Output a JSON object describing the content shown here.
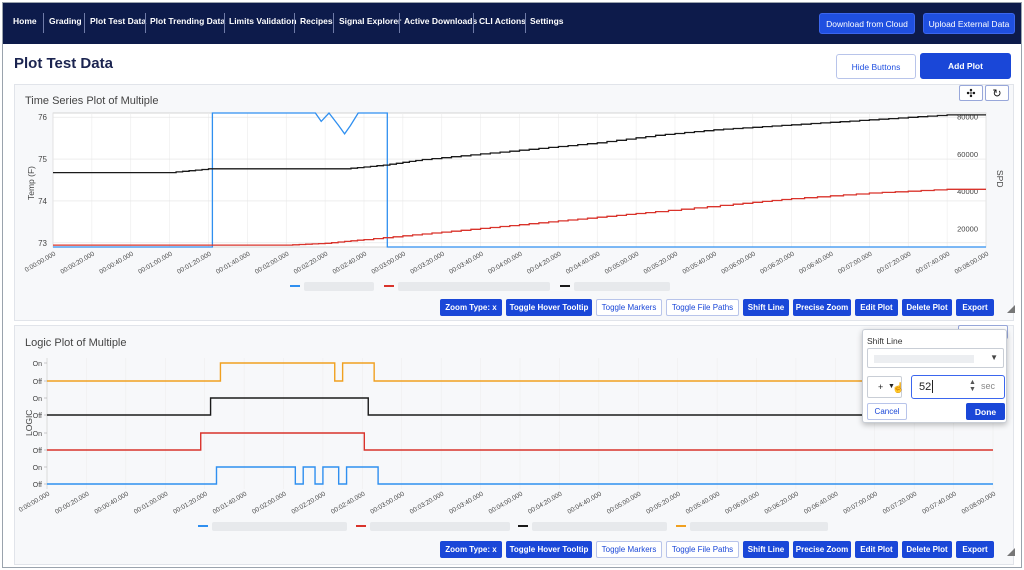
{
  "nav": {
    "items": [
      {
        "label": "Home"
      },
      {
        "label": "Grading"
      },
      {
        "label": "Plot Test Data"
      },
      {
        "label": "Plot Trending Data"
      },
      {
        "label": "Limits Validation"
      },
      {
        "label": "Recipes"
      },
      {
        "label": "Signal Explorer"
      },
      {
        "label": "Active Downloads"
      },
      {
        "label": "CLI Actions"
      },
      {
        "label": "Settings"
      }
    ],
    "download_label": "Download from Cloud",
    "upload_label": "Upload External Data"
  },
  "page": {
    "title": "Plot Test Data",
    "hide_buttons_label": "Hide Buttons",
    "add_plot_label": "Add Plot"
  },
  "toolbar": {
    "zoom_type": "Zoom Type: x",
    "toggle_hover": "Toggle Hover Tooltip",
    "toggle_markers": "Toggle Markers",
    "toggle_file_paths": "Toggle File Paths",
    "shift_line": "Shift Line",
    "precise_zoom": "Precise Zoom",
    "edit_plot": "Edit Plot",
    "delete_plot": "Delete Plot",
    "export": "Export"
  },
  "plot1": {
    "title": "Time Series Plot of Multiple",
    "y_left_label": "Temp (F)",
    "y_right_label": "SPD",
    "y_left_ticks": [
      "76",
      "75",
      "74",
      "73"
    ],
    "y_right_ticks": [
      "80000",
      "60000",
      "40000",
      "20000"
    ],
    "move_icon": "move-icon",
    "reset_icon": "reset-icon"
  },
  "plot2": {
    "title": "Logic Plot of Multiple",
    "y_label": "LOGIC",
    "state_on": "On",
    "state_off": "Off"
  },
  "x_ticks": [
    "0:00:00.000",
    "00:00:20.000",
    "00:00:40.000",
    "00:01:00.000",
    "00:01:20.000",
    "00:01:40.000",
    "00:02:00.000",
    "00:02:20.000",
    "00:02:40.000",
    "00:03:00.000",
    "00:03:20.000",
    "00:03:40.000",
    "00:04:00.000",
    "00:04:20.000",
    "00:04:40.000",
    "00:05:00.000",
    "00:05:20.000",
    "00:05:40.000",
    "00:06:00.000",
    "00:06:20.000",
    "00:06:40.000",
    "00:07:00.000",
    "00:07:20.000",
    "00:07:40.000",
    "00:08:00.000"
  ],
  "colors": {
    "blue": "#2f8ff0",
    "red": "#d9332b",
    "black": "#1a1a1a",
    "orange": "#f0a020",
    "nav_bg": "#0d1b4b",
    "primary": "#1a47d8"
  },
  "popup": {
    "title": "Shift Line",
    "sign": "+",
    "value": "52",
    "unit": "sec",
    "cancel": "Cancel",
    "done": "Done"
  },
  "chart_data": [
    {
      "type": "line",
      "title": "Time Series Plot of Multiple",
      "ylabel": "Temp (F)",
      "ylabel_right": "SPD",
      "ylim": [
        72.9,
        76.1
      ],
      "ylim_right": [
        10000,
        82000
      ],
      "grid": true,
      "x_seconds": [
        0,
        20,
        40,
        60,
        80,
        100,
        120,
        140,
        160,
        180,
        200,
        220,
        240,
        260,
        280,
        300,
        320,
        340,
        360,
        380,
        400,
        420,
        440,
        460,
        480
      ],
      "series": [
        {
          "axis": "left",
          "color": "blue",
          "points": [
            [
              0,
              72.9
            ],
            [
              82,
              72.9
            ],
            [
              82,
              76.1
            ],
            [
              135,
              76.1
            ],
            [
              138,
              75.9
            ],
            [
              142,
              76.1
            ],
            [
              147,
              75.8
            ],
            [
              150,
              75.6
            ],
            [
              153,
              75.8
            ],
            [
              157,
              76.1
            ],
            [
              172,
              76.1
            ],
            [
              172,
              72.9
            ],
            [
              480,
              72.9
            ]
          ]
        },
        {
          "axis": "right",
          "color": "black",
          "points": [
            [
              0,
              50000
            ],
            [
              60,
              50000
            ],
            [
              80,
              52000
            ],
            [
              150,
              52000
            ],
            [
              170,
              54000
            ],
            [
              190,
              57000
            ],
            [
              220,
              60000
            ],
            [
              250,
              63000
            ],
            [
              280,
              66000
            ],
            [
              310,
              70000
            ],
            [
              340,
              73000
            ],
            [
              370,
              75000
            ],
            [
              400,
              77000
            ],
            [
              430,
              79000
            ],
            [
              460,
              81000
            ],
            [
              480,
              81000
            ]
          ]
        },
        {
          "axis": "right",
          "color": "red",
          "points": [
            [
              0,
              11000
            ],
            [
              120,
              11000
            ],
            [
              140,
              12000
            ],
            [
              160,
              14000
            ],
            [
              190,
              17000
            ],
            [
              220,
              20000
            ],
            [
              250,
              23000
            ],
            [
              280,
              26000
            ],
            [
              310,
              29000
            ],
            [
              350,
              33000
            ],
            [
              380,
              36000
            ],
            [
              420,
              39000
            ],
            [
              460,
              41000
            ],
            [
              480,
              41000
            ]
          ]
        }
      ]
    },
    {
      "type": "line",
      "title": "Logic Plot of Multiple",
      "ylabel": "LOGIC",
      "states": [
        "Off",
        "On"
      ],
      "x_seconds": [
        0,
        20,
        40,
        60,
        80,
        100,
        120,
        140,
        160,
        180,
        200,
        220,
        240,
        260,
        280,
        300,
        320,
        340,
        360,
        380,
        400,
        420,
        440,
        460,
        480
      ],
      "series": [
        {
          "color": "orange",
          "transitions": [
            [
              0,
              0
            ],
            [
              88,
              1
            ],
            [
              146,
              0
            ],
            [
              150,
              1
            ],
            [
              166,
              0
            ],
            [
              480,
              0
            ]
          ]
        },
        {
          "color": "black",
          "transitions": [
            [
              0,
              0
            ],
            [
              83,
              1
            ],
            [
              163,
              0
            ],
            [
              480,
              0
            ]
          ]
        },
        {
          "color": "red",
          "transitions": [
            [
              0,
              0
            ],
            [
              78,
              1
            ],
            [
              161,
              0
            ],
            [
              480,
              0
            ]
          ]
        },
        {
          "color": "blue",
          "transitions": [
            [
              0,
              0
            ],
            [
              86,
              1
            ],
            [
              126,
              0
            ],
            [
              130,
              1
            ],
            [
              136,
              0
            ],
            [
              140,
              1
            ],
            [
              148,
              0
            ],
            [
              152,
              1
            ],
            [
              168,
              0
            ],
            [
              480,
              0
            ]
          ]
        }
      ]
    }
  ]
}
